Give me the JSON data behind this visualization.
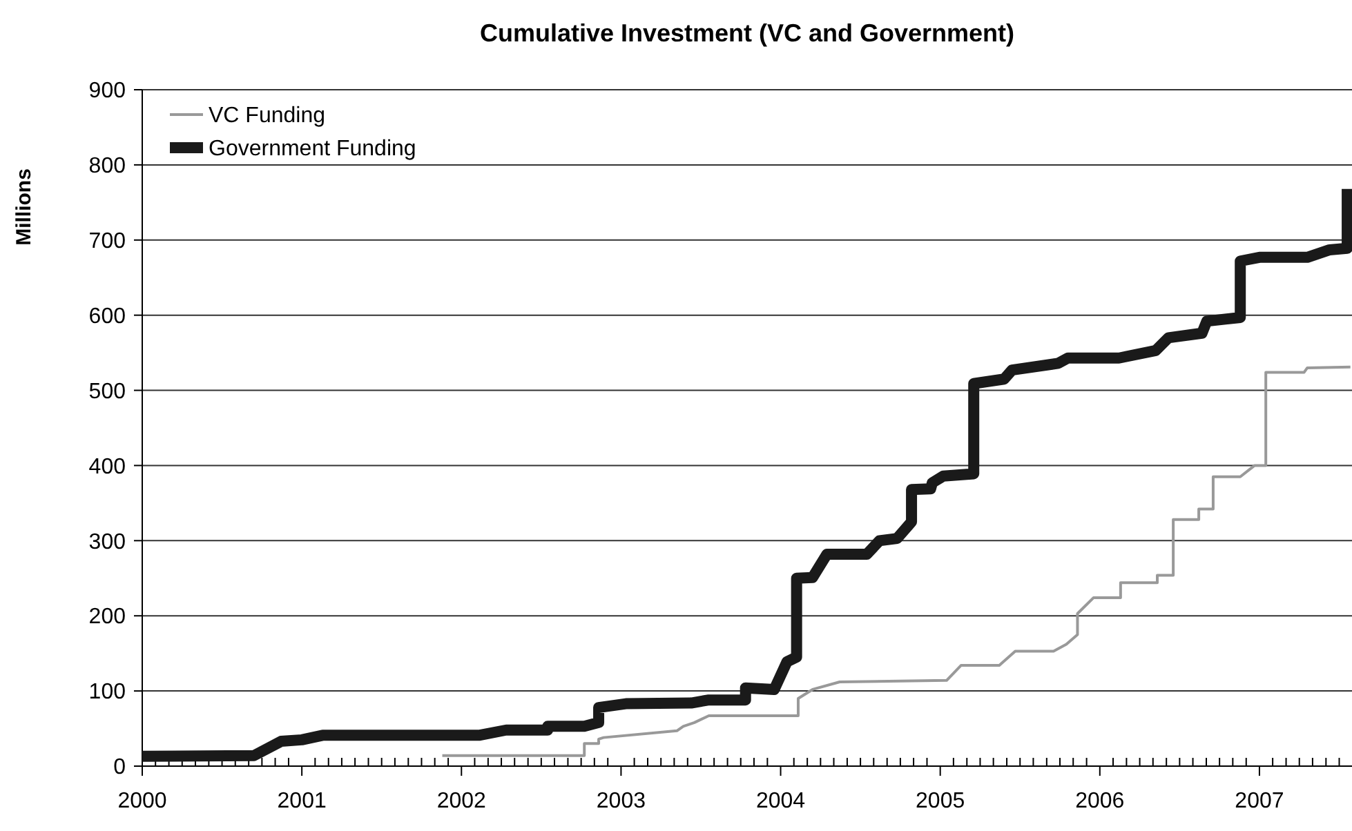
{
  "chart_data": {
    "type": "line",
    "title": "Cumulative Investment (VC and Government)",
    "ylabel": "Millions",
    "xlim": [
      2000,
      2007.58
    ],
    "ylim": [
      0,
      900
    ],
    "yticks": [
      0,
      100,
      200,
      300,
      400,
      500,
      600,
      700,
      800,
      900
    ],
    "xticks": [
      2000,
      {
        "value": 2000.083,
        "label": null
      },
      {
        "value": 2000.167,
        "label": null
      },
      {
        "value": 2000.25,
        "label": null
      },
      {
        "value": 2000.333,
        "label": null
      },
      {
        "value": 2000.417,
        "label": null
      },
      {
        "value": 2000.5,
        "label": null
      },
      {
        "value": 2000.583,
        "label": null
      },
      {
        "value": 2000.667,
        "label": null
      },
      {
        "value": 2000.75,
        "label": null
      },
      {
        "value": 2000.833,
        "label": null
      },
      {
        "value": 2000.917,
        "label": null
      },
      2001,
      {
        "value": 2001.083,
        "label": null
      },
      {
        "value": 2001.167,
        "label": null
      },
      {
        "value": 2001.25,
        "label": null
      },
      {
        "value": 2001.333,
        "label": null
      },
      {
        "value": 2001.417,
        "label": null
      },
      {
        "value": 2001.5,
        "label": null
      },
      {
        "value": 2001.583,
        "label": null
      },
      {
        "value": 2001.667,
        "label": null
      },
      {
        "value": 2001.75,
        "label": null
      },
      {
        "value": 2001.833,
        "label": null
      },
      {
        "value": 2001.917,
        "label": null
      },
      2002,
      {
        "value": 2002.083,
        "label": null
      },
      {
        "value": 2002.167,
        "label": null
      },
      {
        "value": 2002.25,
        "label": null
      },
      {
        "value": 2002.333,
        "label": null
      },
      {
        "value": 2002.417,
        "label": null
      },
      {
        "value": 2002.5,
        "label": null
      },
      {
        "value": 2002.583,
        "label": null
      },
      {
        "value": 2002.667,
        "label": null
      },
      {
        "value": 2002.75,
        "label": null
      },
      {
        "value": 2002.833,
        "label": null
      },
      {
        "value": 2002.917,
        "label": null
      },
      2003,
      {
        "value": 2003.083,
        "label": null
      },
      {
        "value": 2003.167,
        "label": null
      },
      {
        "value": 2003.25,
        "label": null
      },
      {
        "value": 2003.333,
        "label": null
      },
      {
        "value": 2003.417,
        "label": null
      },
      {
        "value": 2003.5,
        "label": null
      },
      {
        "value": 2003.583,
        "label": null
      },
      {
        "value": 2003.667,
        "label": null
      },
      {
        "value": 2003.75,
        "label": null
      },
      {
        "value": 2003.833,
        "label": null
      },
      {
        "value": 2003.917,
        "label": null
      },
      2004,
      {
        "value": 2004.083,
        "label": null
      },
      {
        "value": 2004.167,
        "label": null
      },
      {
        "value": 2004.25,
        "label": null
      },
      {
        "value": 2004.333,
        "label": null
      },
      {
        "value": 2004.417,
        "label": null
      },
      {
        "value": 2004.5,
        "label": null
      },
      {
        "value": 2004.583,
        "label": null
      },
      {
        "value": 2004.667,
        "label": null
      },
      {
        "value": 2004.75,
        "label": null
      },
      {
        "value": 2004.833,
        "label": null
      },
      {
        "value": 2004.917,
        "label": null
      },
      2005,
      {
        "value": 2005.083,
        "label": null
      },
      {
        "value": 2005.167,
        "label": null
      },
      {
        "value": 2005.25,
        "label": null
      },
      {
        "value": 2005.333,
        "label": null
      },
      {
        "value": 2005.417,
        "label": null
      },
      {
        "value": 2005.5,
        "label": null
      },
      {
        "value": 2005.583,
        "label": null
      },
      {
        "value": 2005.667,
        "label": null
      },
      {
        "value": 2005.75,
        "label": null
      },
      {
        "value": 2005.833,
        "label": null
      },
      {
        "value": 2005.917,
        "label": null
      },
      2006,
      {
        "value": 2006.083,
        "label": null
      },
      {
        "value": 2006.167,
        "label": null
      },
      {
        "value": 2006.25,
        "label": null
      },
      {
        "value": 2006.333,
        "label": null
      },
      {
        "value": 2006.417,
        "label": null
      },
      {
        "value": 2006.5,
        "label": null
      },
      {
        "value": 2006.583,
        "label": null
      },
      {
        "value": 2006.667,
        "label": null
      },
      {
        "value": 2006.75,
        "label": null
      },
      {
        "value": 2006.833,
        "label": null
      },
      {
        "value": 2006.917,
        "label": null
      },
      2007,
      {
        "value": 2007.083,
        "label": null
      },
      {
        "value": 2007.167,
        "label": null
      },
      {
        "value": 2007.25,
        "label": null
      },
      {
        "value": 2007.333,
        "label": null
      },
      {
        "value": 2007.417,
        "label": null
      },
      {
        "value": 2007.5,
        "label": null
      }
    ],
    "grid": "y",
    "legend": "top left",
    "series": [
      {
        "name": "VC Funding",
        "color": "#999999",
        "x": [
          2001.88,
          2002.77,
          2002.77,
          2002.86,
          2002.86,
          2002.89,
          2003.35,
          2003.39,
          2003.46,
          2003.55,
          2004.11,
          2004.11,
          2004.2,
          2004.37,
          2005.04,
          2005.13,
          2005.37,
          2005.47,
          2005.71,
          2005.79,
          2005.86,
          2005.86,
          2005.96,
          2006.13,
          2006.13,
          2006.36,
          2006.36,
          2006.46,
          2006.46,
          2006.62,
          2006.62,
          2006.71,
          2006.71,
          2006.88,
          2006.97,
          2007.04,
          2007.04,
          2007.28,
          2007.3,
          2007.57
        ],
        "values": [
          14,
          14,
          30,
          30,
          36,
          38,
          47,
          53,
          58,
          67,
          67,
          90,
          102,
          112,
          114,
          134,
          134,
          153,
          153,
          162,
          175,
          203,
          224,
          224,
          244,
          244,
          254,
          254,
          328,
          328,
          342,
          342,
          385,
          385,
          400,
          400,
          524,
          524,
          530,
          531
        ]
      },
      {
        "name": "Government Funding",
        "color": "#1a1a1a",
        "x": [
          2000,
          2000.7,
          2000.87,
          2001.0,
          2001.13,
          2002.11,
          2002.28,
          2002.54,
          2002.54,
          2002.77,
          2002.86,
          2002.86,
          2003.03,
          2003.44,
          2003.55,
          2003.78,
          2003.78,
          2003.96,
          2004.04,
          2004.1,
          2004.1,
          2004.2,
          2004.29,
          2004.54,
          2004.62,
          2004.73,
          2004.82,
          2004.82,
          2004.94,
          2004.95,
          2005.02,
          2005.21,
          2005.21,
          2005.4,
          2005.45,
          2005.74,
          2005.8,
          2006.12,
          2006.35,
          2006.43,
          2006.64,
          2006.67,
          2006.88,
          2006.88,
          2007.0,
          2007.3,
          2007.44,
          2007.55,
          2007.55
        ],
        "values": [
          13,
          14,
          33,
          35,
          41,
          41,
          48,
          48,
          53,
          53,
          58,
          78,
          83,
          84,
          88,
          88,
          104,
          102,
          139,
          145,
          250,
          251,
          282,
          282,
          300,
          303,
          325,
          368,
          369,
          377,
          386,
          389,
          509,
          515,
          527,
          536,
          543,
          543,
          553,
          570,
          576,
          592,
          597,
          672,
          677,
          677,
          687,
          689,
          768
        ]
      }
    ]
  }
}
